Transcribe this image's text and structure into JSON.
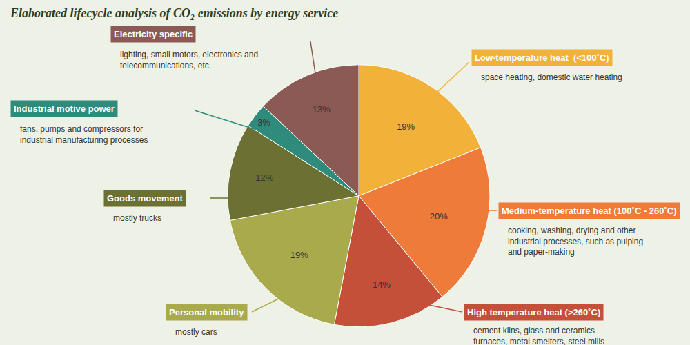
{
  "chart_data": {
    "type": "pie",
    "title": "Elaborated lifecycle analysis of CO₂ emissions by energy service",
    "categories": [
      "Low-temperature heat  (<100˚C)",
      "Medium-temperature heat (100˚C - 260˚C)",
      "High temperature heat (>260˚C)",
      "Personal mobility",
      "Goods movement",
      "Industrial motive power",
      "Electricity specific"
    ],
    "descriptions": [
      [
        "space heating, domestic water heating"
      ],
      [
        "cooking, washing, drying and other",
        "industrial processes, such as pulping",
        "and paper-making"
      ],
      [
        "cement kilns, glass and ceramics",
        "furnaces, metal smelters, steel mills"
      ],
      [
        "mostly cars"
      ],
      [
        "mostly trucks"
      ],
      [
        "fans, pumps and compressors for",
        "industrial manufacturing processes"
      ],
      [
        "lighting, small motors, electronics and",
        "telecommunications, etc."
      ]
    ],
    "values": [
      19,
      20,
      14,
      19,
      12,
      3,
      13
    ],
    "value_labels": [
      "19%",
      "20%",
      "14%",
      "19%",
      "12%",
      "3%",
      "13%"
    ],
    "data_labels": true,
    "colors": [
      "#f2b23a",
      "#ee7b3a",
      "#c4503a",
      "#a8aa4c",
      "#6c7133",
      "#2f8c7c",
      "#8b5a55"
    ]
  }
}
